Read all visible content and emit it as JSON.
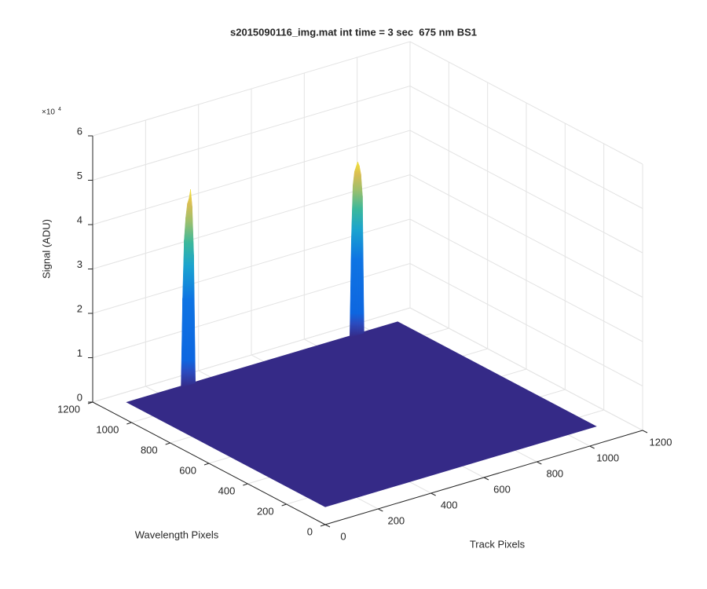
{
  "chart_data": {
    "type": "surface3d",
    "title": "s2015090116_img.mat int time = 3 sec  675 nm BS1",
    "xlabel": "Track Pixels",
    "ylabel": "Wavelength Pixels",
    "zlabel": "Signal (ADU)",
    "zscale": {
      "base": "×10",
      "power": "4"
    },
    "xlim": [
      0,
      1200
    ],
    "ylim": [
      0,
      1200
    ],
    "zlim": [
      0,
      6
    ],
    "xticks": [
      0,
      200,
      400,
      600,
      800,
      1000,
      1200
    ],
    "yticks": [
      0,
      200,
      400,
      600,
      800,
      1000,
      1200
    ],
    "zticks": [
      0,
      1,
      2,
      3,
      4,
      5,
      6
    ],
    "grid": true,
    "surface": {
      "x": [
        1,
        1024
      ],
      "y": [
        1,
        1024
      ],
      "floor": 0.4,
      "color": "#352a87"
    },
    "peaks": [
      {
        "y": 1017,
        "x": [
          200,
          206,
          212,
          218,
          224,
          230,
          236,
          242,
          248,
          254
        ],
        "values": [
          0.4,
          2.4,
          3.7,
          4.2,
          4.5,
          4.6,
          4.8,
          4.4,
          3.3,
          0.4
        ]
      },
      {
        "y": 1017,
        "x": [
          838,
          844,
          850,
          856,
          862,
          868,
          874,
          880,
          886,
          892
        ],
        "values": [
          0.4,
          2.6,
          3.8,
          4.1,
          4.2,
          4.3,
          4.2,
          4.0,
          3.5,
          0.4
        ]
      }
    ]
  }
}
